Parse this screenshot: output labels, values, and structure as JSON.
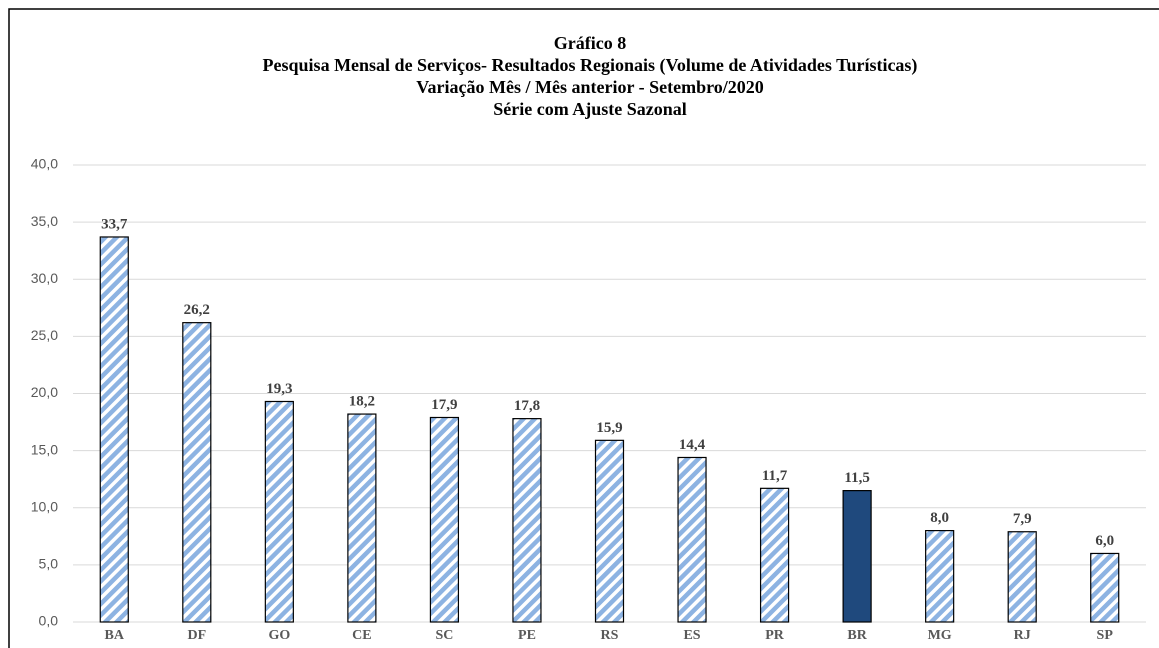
{
  "chart_data": {
    "type": "bar",
    "title": [
      "Gráfico 8",
      "Pesquisa Mensal de Serviços- Resultados Regionais (Volume de Atividades Turísticas)",
      "Variação Mês / Mês anterior - Setembro/2020",
      "Série com Ajuste Sazonal"
    ],
    "categories": [
      "BA",
      "DF",
      "GO",
      "CE",
      "SC",
      "PE",
      "RS",
      "ES",
      "PR",
      "BR",
      "MG",
      "RJ",
      "SP"
    ],
    "values": [
      33.7,
      26.2,
      19.3,
      18.2,
      17.9,
      17.8,
      15.9,
      14.4,
      11.7,
      11.5,
      8.0,
      7.9,
      6.0
    ],
    "value_labels": [
      "33,7",
      "26,2",
      "19,3",
      "18,2",
      "17,9",
      "17,8",
      "15,9",
      "14,4",
      "11,7",
      "11,5",
      "8,0",
      "7,9",
      "6,0"
    ],
    "colors": [
      "#8db3e2",
      "#8db3e2",
      "#8db3e2",
      "#8db3e2",
      "#8db3e2",
      "#8db3e2",
      "#8db3e2",
      "#8db3e2",
      "#8db3e2",
      "#1f497d",
      "#8db3e2",
      "#8db3e2",
      "#8db3e2"
    ],
    "hatch": [
      true,
      true,
      true,
      true,
      true,
      true,
      true,
      true,
      true,
      false,
      true,
      true,
      true
    ],
    "ylim": [
      0,
      40
    ],
    "yticks": [
      {
        "value": 0,
        "label": "0,0"
      },
      {
        "value": 5,
        "label": "5,0"
      },
      {
        "value": 10,
        "label": "10,0"
      },
      {
        "value": 15,
        "label": "15,0"
      },
      {
        "value": 20,
        "label": "20,0"
      },
      {
        "value": 25,
        "label": "25,0"
      },
      {
        "value": 30,
        "label": "30,0"
      },
      {
        "value": 35,
        "label": "35,0"
      },
      {
        "value": 40,
        "label": "40,0"
      }
    ],
    "grid": true
  }
}
